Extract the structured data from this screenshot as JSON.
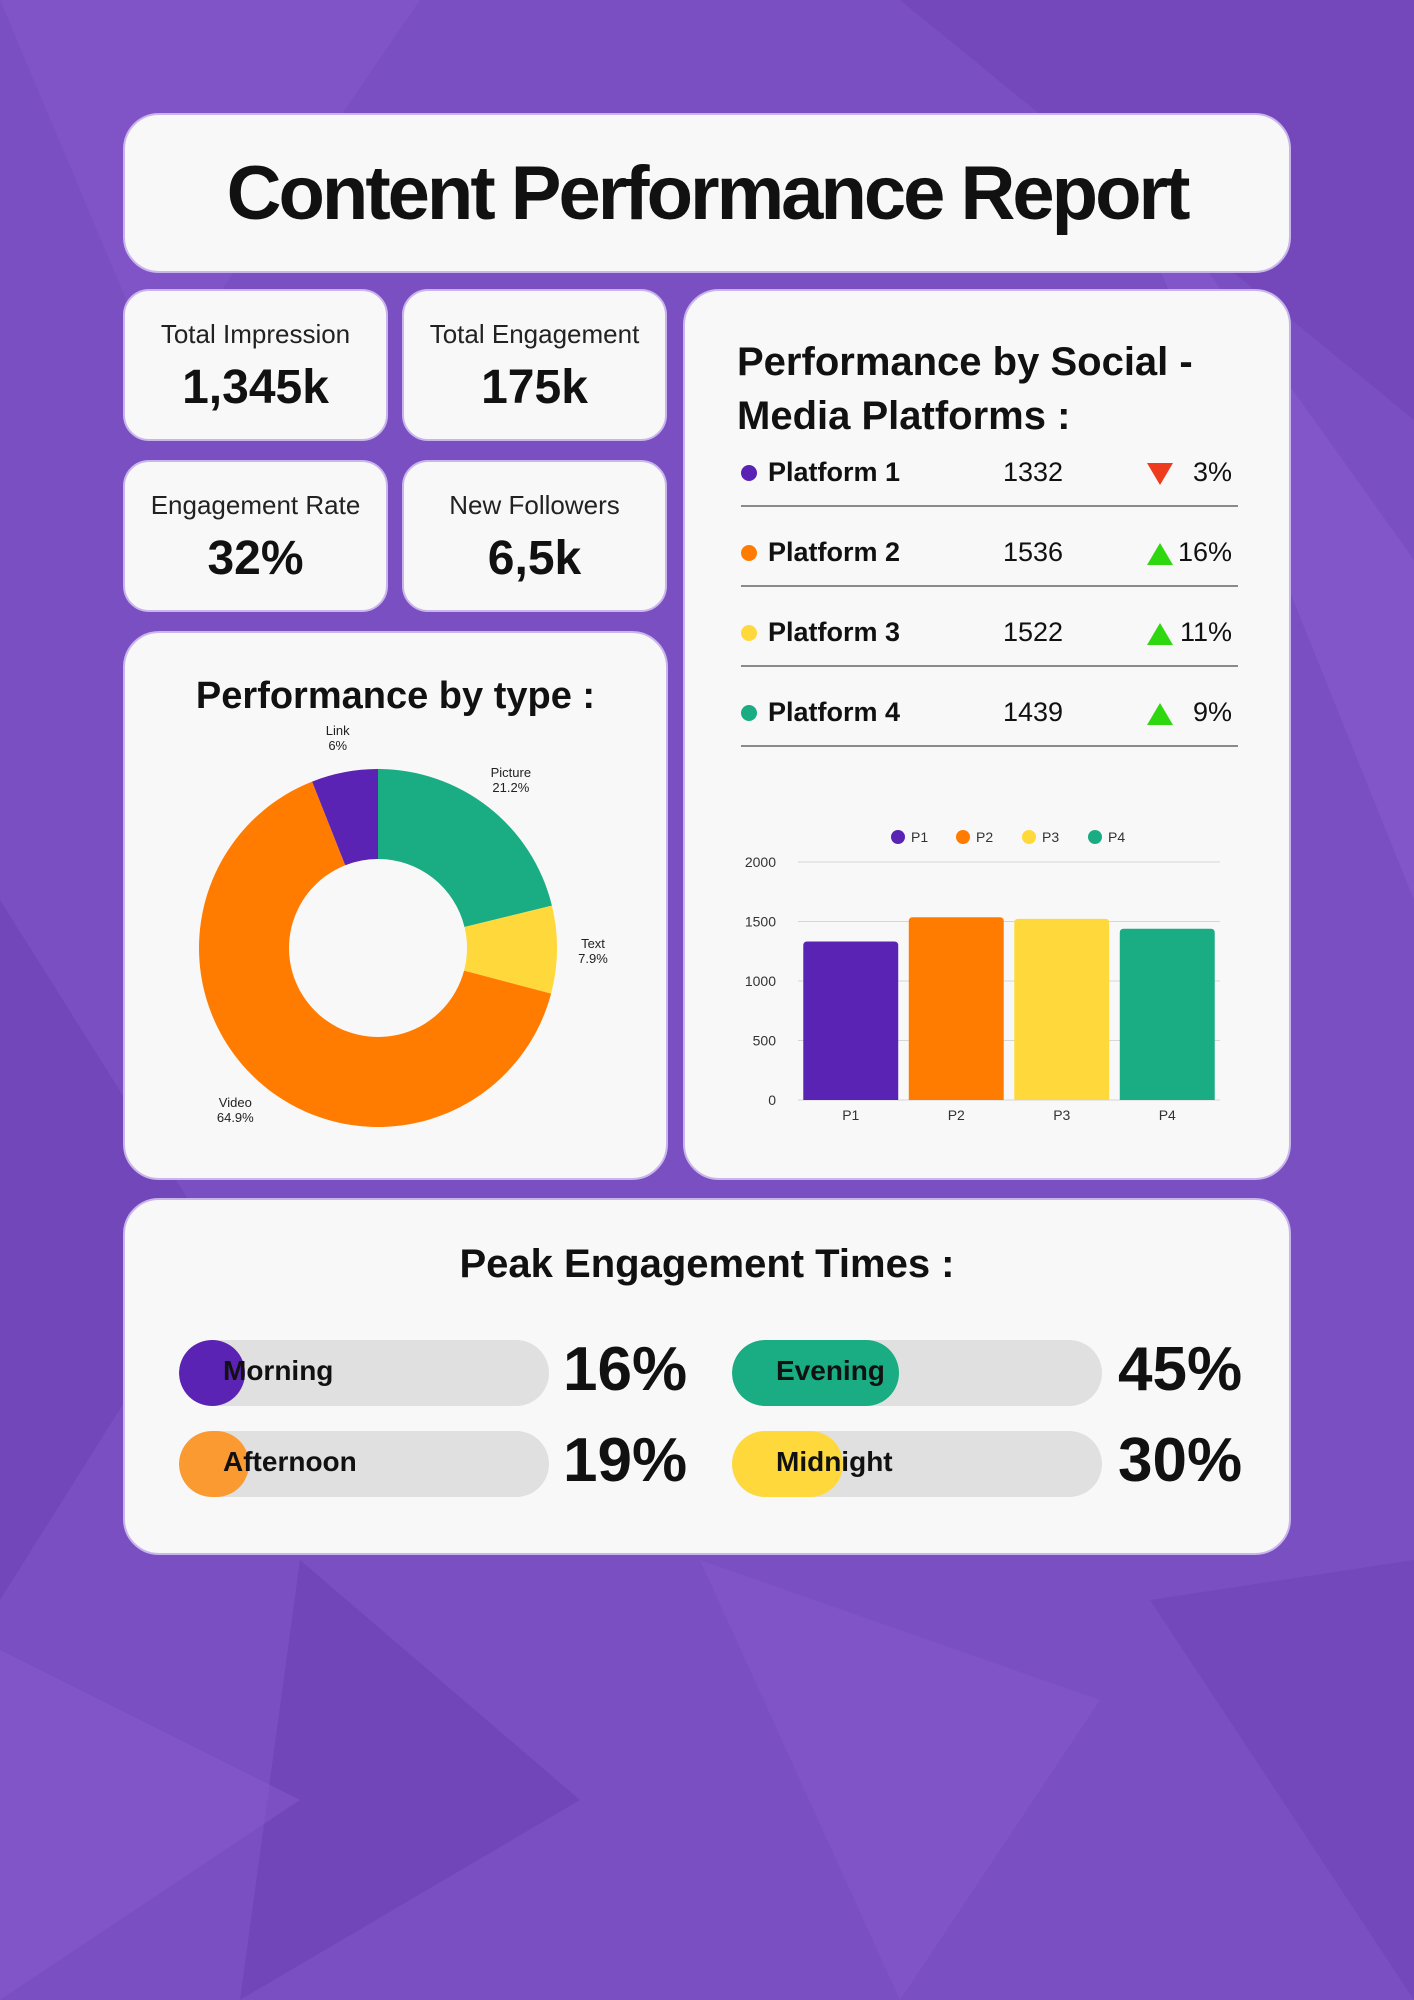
{
  "title": "Content Performance Report",
  "kpis": [
    {
      "label": "Total Impression",
      "value": "1,345k"
    },
    {
      "label": "Total Engagement",
      "value": "175k"
    },
    {
      "label": "Engagement Rate",
      "value": "32%"
    },
    {
      "label": "New Followers",
      "value": "6,5k"
    }
  ],
  "type_section": {
    "title": "Performance by type :"
  },
  "platform_section": {
    "title": "Performance by Social - Media Platforms :",
    "rows": [
      {
        "name": "Platform 1",
        "value": "1332",
        "direction": "down",
        "change": "3%",
        "color": "#5b23b3"
      },
      {
        "name": "Platform 2",
        "value": "1536",
        "direction": "up",
        "change": "16%",
        "color": "#ff7c00"
      },
      {
        "name": "Platform 3",
        "value": "1522",
        "direction": "up",
        "change": "11%",
        "color": "#ffd93b"
      },
      {
        "name": "Platform 4",
        "value": "1439",
        "direction": "up",
        "change": "9%",
        "color": "#1aac82"
      }
    ]
  },
  "peak_section": {
    "title": "Peak Engagement Times :",
    "items": [
      {
        "label": "Morning",
        "percent": "16%",
        "level": 0.16,
        "color": "#5b23b3"
      },
      {
        "label": "Evening",
        "percent": "45%",
        "level": 0.45,
        "color": "#1aac82"
      },
      {
        "label": "Afternoon",
        "percent": "19%",
        "level": 0.19,
        "color": "#fb9a30"
      },
      {
        "label": "Midnight",
        "percent": "30%",
        "level": 0.3,
        "color": "#ffd93b"
      }
    ]
  },
  "chart_data": [
    {
      "type": "pie",
      "variant": "donut",
      "slices": [
        {
          "label": "Picture",
          "pct_text": "21.2%",
          "value": 21.2,
          "color": "#1aac82"
        },
        {
          "label": "Text",
          "pct_text": "7.9%",
          "value": 7.9,
          "color": "#ffd93b"
        },
        {
          "label": "Video",
          "pct_text": "64.9%",
          "value": 64.9,
          "color": "#ff7c00"
        },
        {
          "label": "Link",
          "pct_text": "6%",
          "value": 6.0,
          "color": "#5b23b3"
        }
      ]
    },
    {
      "type": "bar",
      "categories": [
        "P1",
        "P2",
        "P3",
        "P4"
      ],
      "values": [
        1332,
        1536,
        1522,
        1439
      ],
      "colors": [
        "#5b23b3",
        "#ff7c00",
        "#ffd93b",
        "#1aac82"
      ],
      "legend": [
        "P1",
        "P2",
        "P3",
        "P4"
      ],
      "legend_position": "top",
      "ylim": [
        0,
        2000
      ],
      "yticks": [
        "0",
        "500",
        "1000",
        "1500",
        "2000"
      ],
      "grid": true
    }
  ]
}
